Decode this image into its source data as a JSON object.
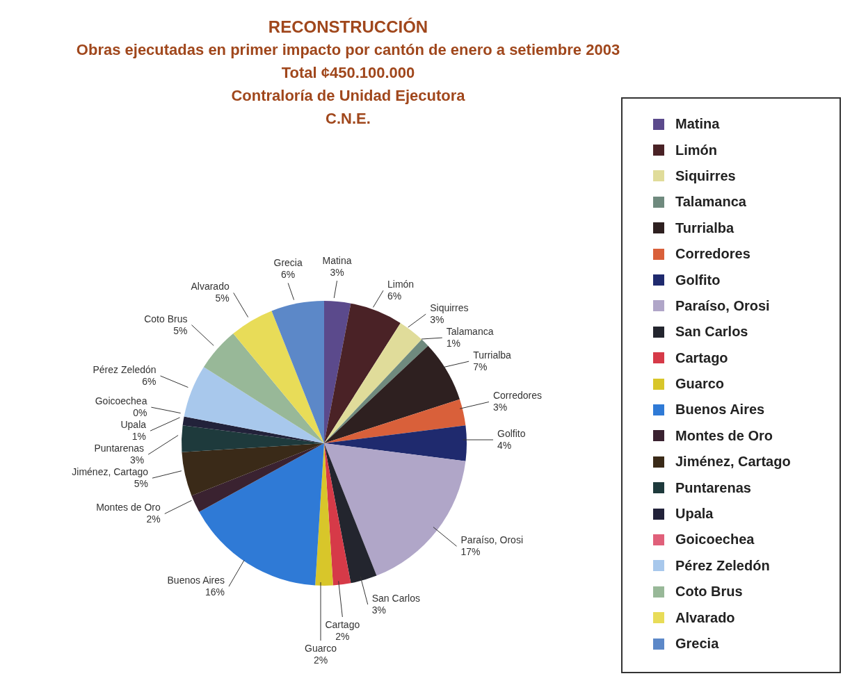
{
  "chart_data": {
    "type": "pie",
    "title": "RECONSTRUCCIÓN",
    "subtitle": "Obras ejecutadas en primer impacto por cantón de enero a setiembre 2003",
    "annotations": [
      "Total  ¢450.100.000",
      "Contraloría de Unidad Ejecutora",
      "C.N.E."
    ],
    "categories": [
      "Matina",
      "Limón",
      "Siquirres",
      "Talamanca",
      "Turrialba",
      "Corredores",
      "Golfito",
      "Paraíso, Orosi",
      "San Carlos",
      "Cartago",
      "Guarco",
      "Buenos Aires",
      "Montes de Oro",
      "Jiménez, Cartago",
      "Puntarenas",
      "Upala",
      "Goicoechea",
      "Pérez Zeledón",
      "Coto Brus",
      "Alvarado",
      "Grecia"
    ],
    "values": [
      3,
      6,
      3,
      1,
      7,
      3,
      4,
      17,
      3,
      2,
      2,
      16,
      2,
      5,
      3,
      1,
      0,
      6,
      5,
      5,
      6
    ],
    "value_labels": [
      "3%",
      "6%",
      "3%",
      "1%",
      "7%",
      "3%",
      "4%",
      "17%",
      "3%",
      "2%",
      "2%",
      "16%",
      "2%",
      "5%",
      "3%",
      "1%",
      "0%",
      "6%",
      "5%",
      "5%",
      "6%"
    ],
    "colors": [
      "#5b4a8c",
      "#4a2226",
      "#e0dc9a",
      "#6f8a7e",
      "#2e2020",
      "#d9603a",
      "#1f2a6e",
      "#b0a6c8",
      "#23252e",
      "#d63a48",
      "#d8c62a",
      "#2f7ad6",
      "#3a2230",
      "#3a2a18",
      "#1e3a3c",
      "#22223a",
      "#e0607a",
      "#a8c8ec",
      "#98b898",
      "#e8dc58",
      "#5c88c8"
    ],
    "legend": "right"
  }
}
